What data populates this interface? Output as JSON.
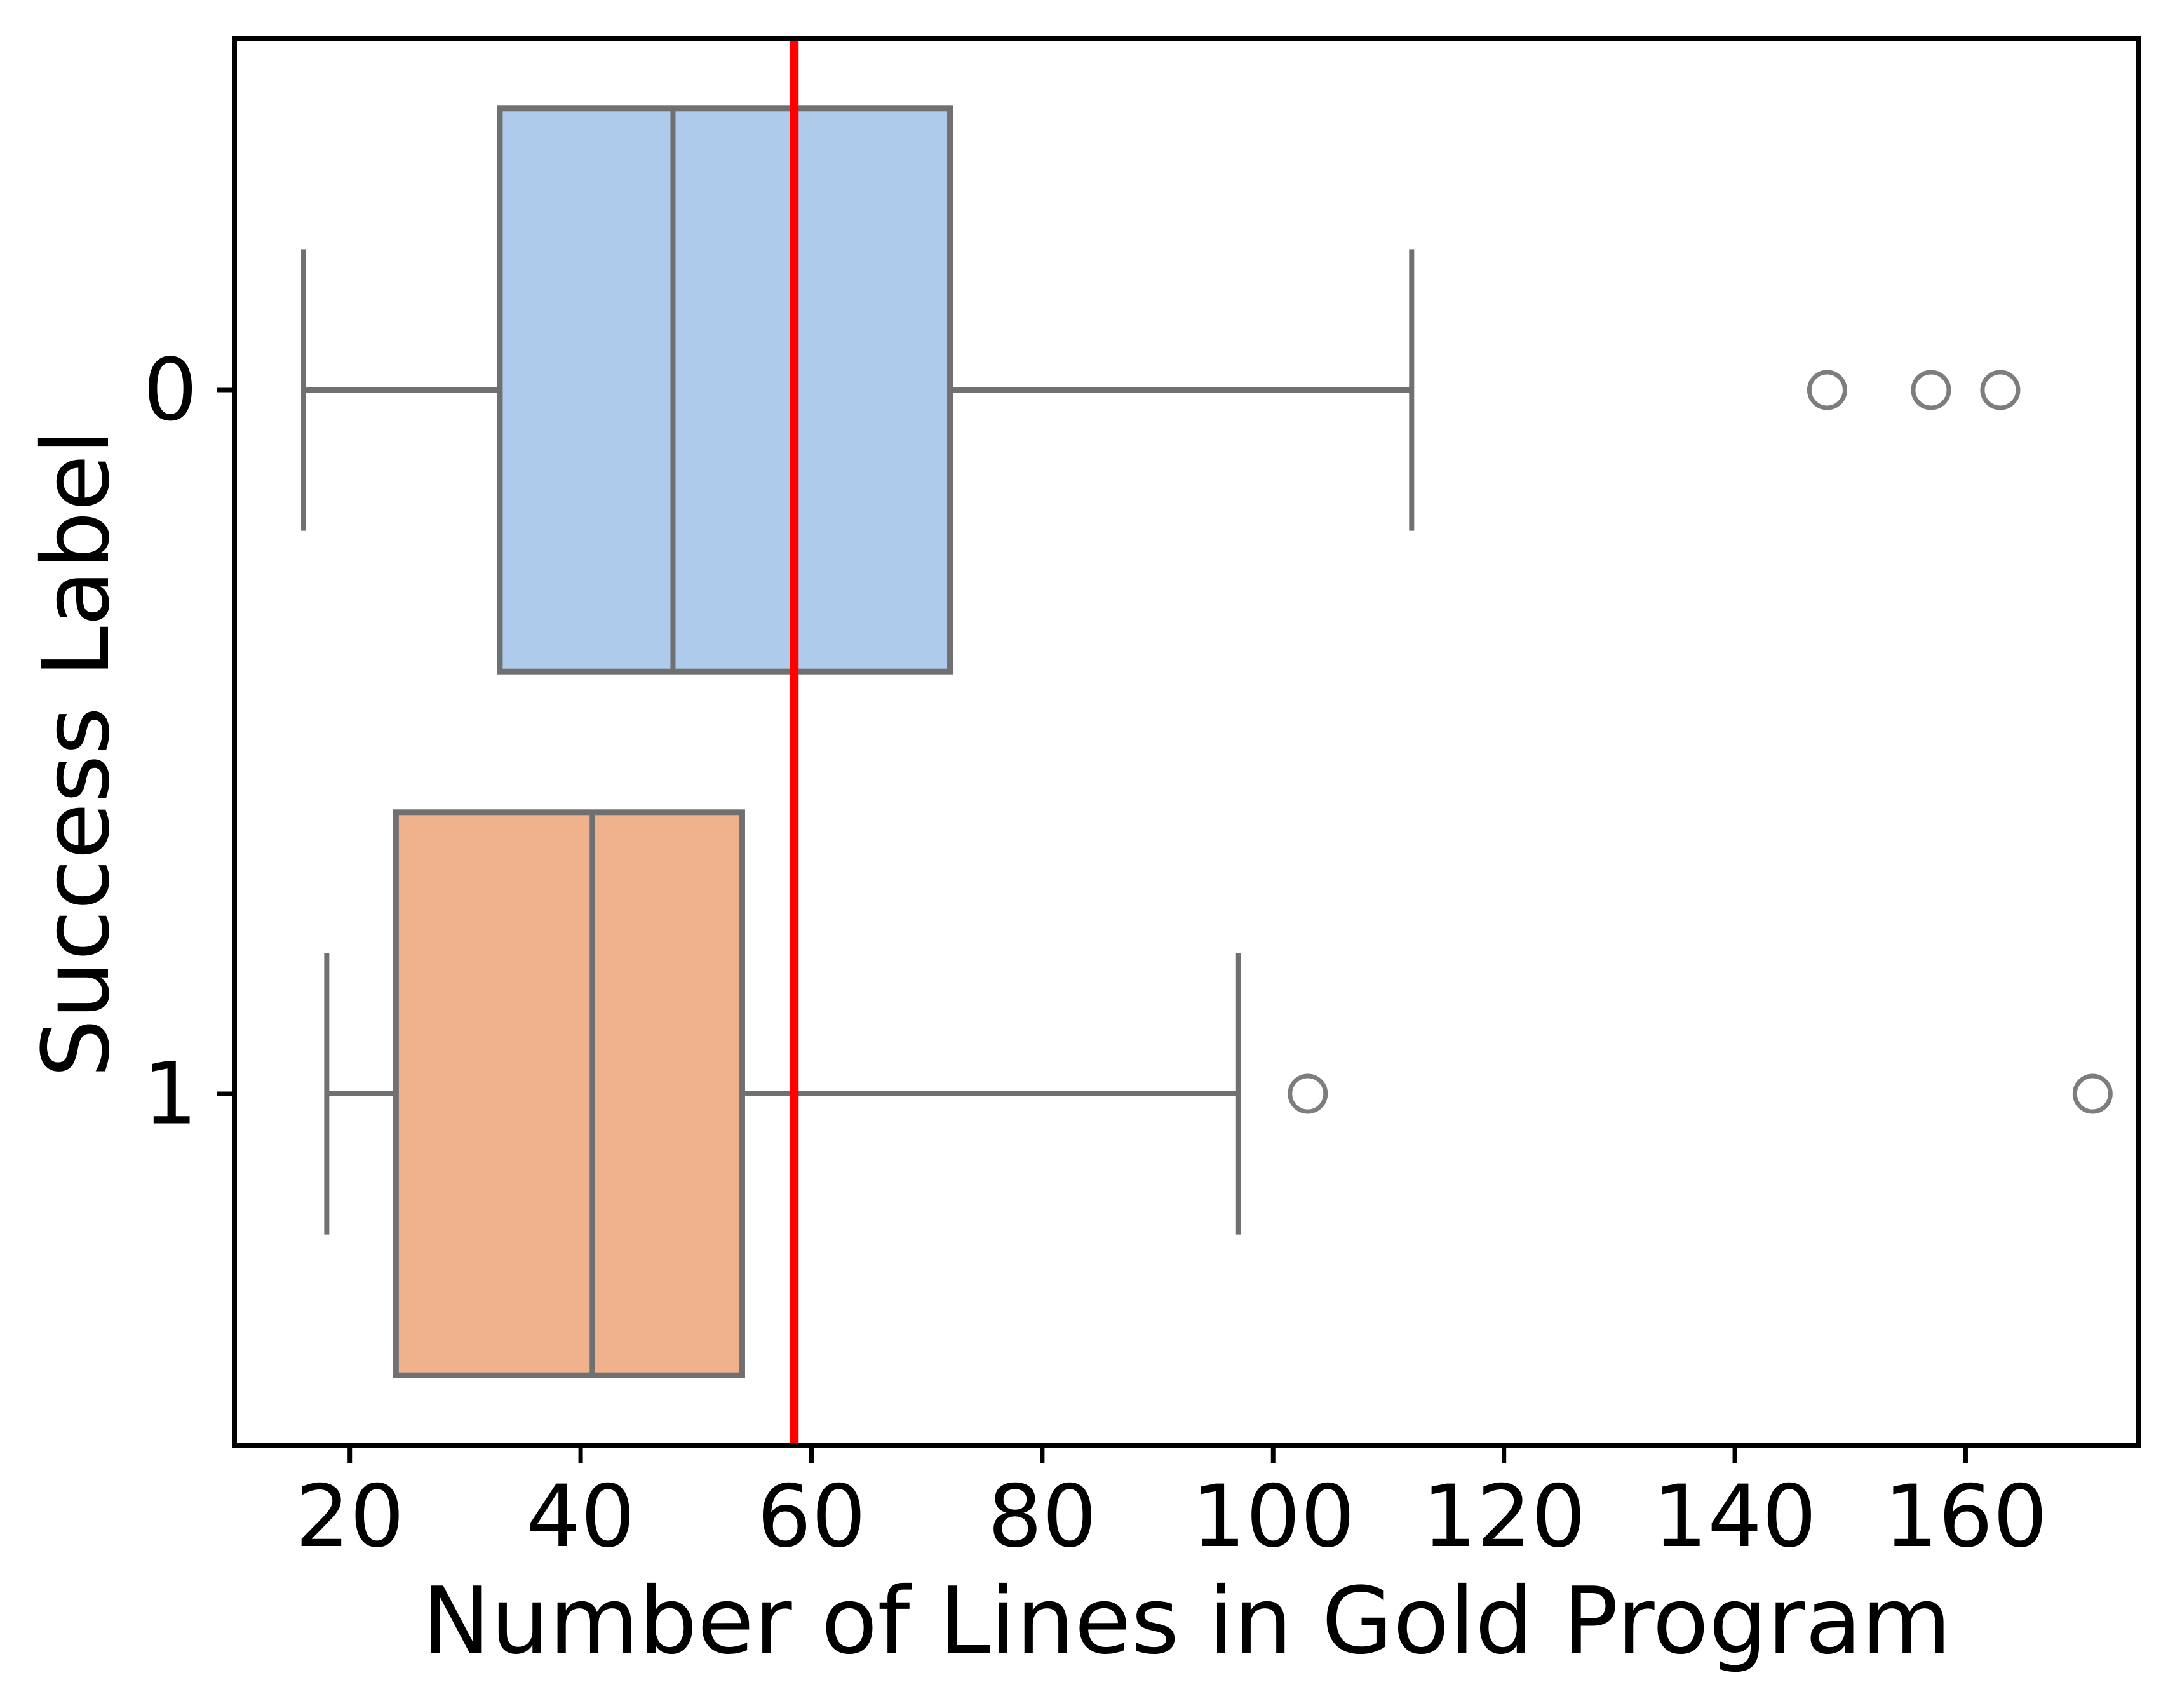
{
  "figure": {
    "background": "#ffffff"
  },
  "chart_data": {
    "type": "boxplot",
    "orientation": "horizontal",
    "title": "",
    "xlabel": "Number of Lines in Gold Program",
    "ylabel": "Success Label",
    "categories": [
      "0",
      "1"
    ],
    "xlim": [
      10,
      175
    ],
    "xticks": [
      20,
      40,
      60,
      80,
      100,
      120,
      140,
      160
    ],
    "grid": false,
    "legend": "none",
    "series": [
      {
        "name": "0",
        "whisker_low": 16,
        "q1": 33,
        "median": 48,
        "q3": 72,
        "whisker_high": 112,
        "outliers": [
          148,
          157,
          163
        ],
        "fill_color": "#aecbec"
      },
      {
        "name": "1",
        "whisker_low": 18,
        "q1": 24,
        "median": 41,
        "q3": 54,
        "whisker_high": 97,
        "outliers": [
          103,
          171
        ],
        "fill_color": "#f0b28d"
      }
    ],
    "reference_line": {
      "value": 58.5,
      "orientation": "vertical",
      "color": "#ff0000"
    },
    "colors": {
      "box_edge": "#707070",
      "whisker": "#707070",
      "median": "#707070",
      "outlier_edge": "#7d7d7d",
      "axis": "#000000",
      "background": "#ffffff"
    }
  }
}
